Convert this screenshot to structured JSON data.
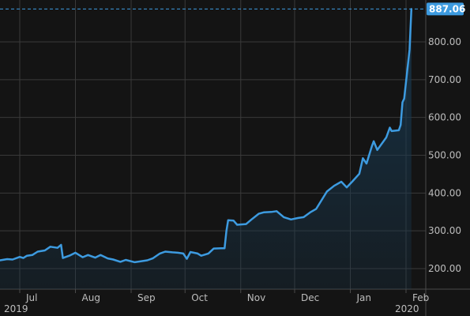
{
  "chart_data": {
    "type": "area",
    "x_axis": {
      "tick_labels": [
        "Jul",
        "Aug",
        "Sep",
        "Oct",
        "Nov",
        "Dec",
        "Jan",
        "Feb"
      ],
      "year_labels": [
        "2019",
        "2020"
      ]
    },
    "y_axis": {
      "ticks": [
        200,
        300,
        400,
        500,
        600,
        700,
        800
      ],
      "tick_labels": [
        "200.00",
        "300.00",
        "400.00",
        "500.00",
        "600.00",
        "700.00",
        "800.00"
      ],
      "range": [
        175,
        890
      ],
      "position": "right"
    },
    "grid": true,
    "last_value": 887.06,
    "last_value_label": "887.06",
    "series": [
      {
        "line_color": "#3d9be0",
        "area_color": "#18384f",
        "points": [
          [
            "2019-06-17",
            225
          ],
          [
            "2019-06-20",
            222
          ],
          [
            "2019-06-24",
            225
          ],
          [
            "2019-06-27",
            224
          ],
          [
            "2019-07-01",
            231
          ],
          [
            "2019-07-03",
            228
          ],
          [
            "2019-07-05",
            234
          ],
          [
            "2019-07-08",
            236
          ],
          [
            "2019-07-11",
            245
          ],
          [
            "2019-07-15",
            248
          ],
          [
            "2019-07-18",
            258
          ],
          [
            "2019-07-22",
            255
          ],
          [
            "2019-07-24",
            263
          ],
          [
            "2019-07-25",
            228
          ],
          [
            "2019-07-29",
            235
          ],
          [
            "2019-08-01",
            242
          ],
          [
            "2019-08-05",
            230
          ],
          [
            "2019-08-08",
            236
          ],
          [
            "2019-08-12",
            229
          ],
          [
            "2019-08-15",
            236
          ],
          [
            "2019-08-19",
            227
          ],
          [
            "2019-08-22",
            224
          ],
          [
            "2019-08-26",
            218
          ],
          [
            "2019-08-29",
            223
          ],
          [
            "2019-09-03",
            217
          ],
          [
            "2019-09-06",
            219
          ],
          [
            "2019-09-10",
            222
          ],
          [
            "2019-09-13",
            227
          ],
          [
            "2019-09-17",
            240
          ],
          [
            "2019-09-20",
            245
          ],
          [
            "2019-09-24",
            243
          ],
          [
            "2019-09-27",
            242
          ],
          [
            "2019-09-30",
            240
          ],
          [
            "2019-10-02",
            226
          ],
          [
            "2019-10-04",
            244
          ],
          [
            "2019-10-08",
            240
          ],
          [
            "2019-10-10",
            234
          ],
          [
            "2019-10-14",
            240
          ],
          [
            "2019-10-17",
            253
          ],
          [
            "2019-10-21",
            254
          ],
          [
            "2019-10-23",
            254
          ],
          [
            "2019-10-24",
            299
          ],
          [
            "2019-10-25",
            328
          ],
          [
            "2019-10-28",
            327
          ],
          [
            "2019-10-30",
            316
          ],
          [
            "2019-11-04",
            318
          ],
          [
            "2019-11-07",
            330
          ],
          [
            "2019-11-11",
            345
          ],
          [
            "2019-11-14",
            349
          ],
          [
            "2019-11-18",
            350
          ],
          [
            "2019-11-21",
            352
          ],
          [
            "2019-11-25",
            336
          ],
          [
            "2019-11-29",
            330
          ],
          [
            "2019-12-03",
            334
          ],
          [
            "2019-12-06",
            336
          ],
          [
            "2019-12-10",
            350
          ],
          [
            "2019-12-13",
            358
          ],
          [
            "2019-12-16",
            381
          ],
          [
            "2019-12-19",
            404
          ],
          [
            "2019-12-23",
            419
          ],
          [
            "2019-12-27",
            430
          ],
          [
            "2019-12-30",
            415
          ],
          [
            "2020-01-02",
            430
          ],
          [
            "2020-01-06",
            451
          ],
          [
            "2020-01-08",
            492
          ],
          [
            "2020-01-10",
            478
          ],
          [
            "2020-01-13",
            524
          ],
          [
            "2020-01-14",
            537
          ],
          [
            "2020-01-16",
            514
          ],
          [
            "2020-01-21",
            547
          ],
          [
            "2020-01-23",
            573
          ],
          [
            "2020-01-24",
            564
          ],
          [
            "2020-01-28",
            566
          ],
          [
            "2020-01-29",
            580
          ],
          [
            "2020-01-30",
            640
          ],
          [
            "2020-01-31",
            650
          ],
          [
            "2020-02-03",
            780
          ],
          [
            "2020-02-04",
            887.06
          ]
        ]
      }
    ]
  }
}
